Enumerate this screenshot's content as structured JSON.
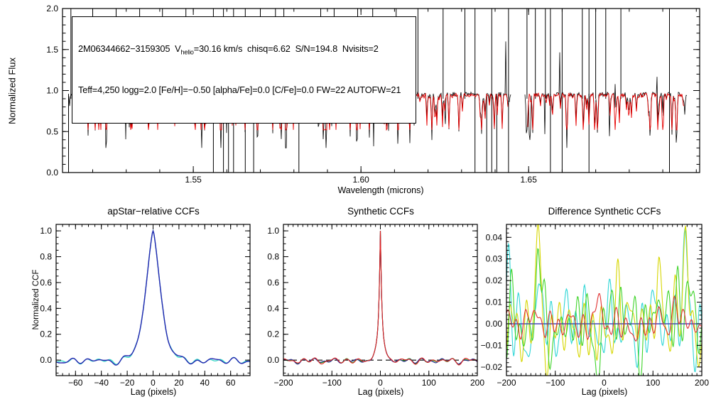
{
  "background": "#ffffff",
  "chart_data": [
    {
      "id": "spectrum",
      "type": "line",
      "xlabel": "Wavelength (microns)",
      "ylabel": "Normalized Flux",
      "xlim": [
        1.511,
        1.701
      ],
      "ylim": [
        0.0,
        2.0
      ],
      "xticks": [
        1.55,
        1.6,
        1.65
      ],
      "xtick_labels": [
        "1.55",
        "1.60",
        "1.65"
      ],
      "yticks": [
        0.0,
        0.5,
        1.0,
        1.5,
        2.0
      ],
      "ytick_labels": [
        "0.0",
        "0.5",
        "1.0",
        "1.5",
        "2.0"
      ],
      "x_minor": 0.01,
      "y_minor": 0.1,
      "grid": false,
      "segments_microns": [
        [
          1.5127,
          1.5815
        ],
        [
          1.5868,
          1.6447
        ],
        [
          1.6489,
          1.6972
        ]
      ],
      "continuum": 0.95,
      "annotation": {
        "line1_pre": "2M06344662−3159305  V",
        "line1_sub": "helio",
        "line1_post": "=30.16 km/s  chisq=6.62  S/N=194.8  Nvisits=2",
        "line2": "Teff=4,250 logg=2.0 [Fe/H]=−0.50 [alpha/Fe]=0.0 [C/Fe]=0.0 FW=22 AUTOFW=21"
      },
      "series": [
        {
          "name": "observed-spectrum",
          "color": "#000000"
        },
        {
          "name": "model-spectrum",
          "color": "#e60000"
        }
      ],
      "spikes_up_microns": [
        1.5135,
        1.52,
        1.527,
        1.534,
        1.5408,
        1.5478,
        1.556,
        1.559,
        1.562,
        1.5655,
        1.57,
        1.5745,
        1.577,
        1.588,
        1.592,
        1.599,
        1.6035,
        1.6105,
        1.617,
        1.6245,
        1.631,
        1.634,
        1.639,
        1.644,
        1.6495,
        1.652,
        1.655,
        1.6565,
        1.66,
        1.666,
        1.668,
        1.67,
        1.673,
        1.6775,
        1.692
      ],
      "spikes_down_microns": [
        1.5128,
        1.556,
        1.559,
        1.5605,
        1.562,
        1.5655,
        1.568,
        1.5815,
        1.634,
        1.6375,
        1.639,
        1.6405,
        1.644,
        1.6565,
        1.66,
        1.668,
        1.692
      ],
      "noise_seed": 7
    },
    {
      "id": "apstar_ccf",
      "type": "line",
      "title": "apStar−relative CCFs",
      "xlabel": "Lag (pixels)",
      "ylabel": "Normalized CCF",
      "xlim": [
        -75,
        75
      ],
      "ylim": [
        -0.12,
        1.05
      ],
      "xticks": [
        -60,
        -40,
        -20,
        0,
        20,
        40,
        60
      ],
      "xtick_labels": [
        "−60",
        "−40",
        "−20",
        "0",
        "20",
        "40",
        "60"
      ],
      "yticks": [
        0.0,
        0.2,
        0.4,
        0.6,
        0.8,
        1.0
      ],
      "ytick_labels": [
        "0.0",
        "0.2",
        "0.4",
        "0.6",
        "0.8",
        "1.0"
      ],
      "x_minor": 5,
      "y_minor": 0.05,
      "grid": false,
      "peak": {
        "center": 0,
        "height": 1.0,
        "width": 8.0,
        "power": 1.5
      },
      "osc": {
        "periods": [
          9.5,
          14,
          21,
          33
        ],
        "amps": [
          0.012,
          0.009,
          0.006,
          0.005
        ]
      },
      "series": [
        {
          "name": "ccf-cyan",
          "color": "#3cdcc8",
          "seed": 5
        },
        {
          "name": "ccf-navy",
          "color": "#2525b0",
          "seed": 5,
          "extra_seed": 9,
          "extra_amp": 0.004
        }
      ]
    },
    {
      "id": "synthetic_ccf",
      "type": "line",
      "title": "Synthetic CCFs",
      "xlabel": "Lag (pixels)",
      "xlim": [
        -200,
        200
      ],
      "ylim": [
        -0.12,
        1.05
      ],
      "xticks": [
        -200,
        -100,
        0,
        100,
        200
      ],
      "xtick_labels": [
        "−200",
        "−100",
        "0",
        "100",
        "200"
      ],
      "yticks": [
        0.0,
        0.2,
        0.4,
        0.6,
        0.8,
        1.0
      ],
      "ytick_labels": [
        "0.0",
        "0.2",
        "0.4",
        "0.6",
        "0.8",
        "1.0"
      ],
      "x_minor": 10,
      "y_minor": 0.05,
      "grid": false,
      "zero_line": {
        "style": "dashed",
        "color": "#000000"
      },
      "peak": {
        "height": 1.0,
        "core_width": 2.9,
        "core_power": 1.07,
        "core_amp": 0.9,
        "wing_amp": 0.14,
        "wing_width": 13
      },
      "osc": {
        "periods": [
          22,
          31,
          47,
          68
        ],
        "amps": [
          0.011,
          0.008,
          0.006,
          0.0045
        ]
      },
      "series": [
        {
          "name": "synth-ccf-green",
          "color": "#1fae1f",
          "seed": 21
        },
        {
          "name": "synth-ccf-navy",
          "color": "#24248c",
          "seed": 21,
          "extra_seed": 3,
          "extra_amp": 0.003
        },
        {
          "name": "synth-ccf-red",
          "color": "#e02222",
          "seed": 21,
          "extra_seed": 8,
          "extra_amp": 0.003
        }
      ]
    },
    {
      "id": "diff_ccf",
      "type": "line",
      "title": "Difference Synthetic CCFs",
      "xlabel": "Lag (pixels)",
      "xlim": [
        -200,
        200
      ],
      "ylim": [
        -0.024,
        0.046
      ],
      "xticks": [
        -200,
        -100,
        0,
        100,
        200
      ],
      "xtick_labels": [
        "−200",
        "−100",
        "0",
        "100",
        "200"
      ],
      "yticks": [
        -0.02,
        -0.01,
        0.0,
        0.01,
        0.02,
        0.03,
        0.04
      ],
      "ytick_labels": [
        "−0.02",
        "−0.01",
        "0.00",
        "0.01",
        "0.02",
        "0.03",
        "0.04"
      ],
      "x_minor": 10,
      "y_minor": 0.002,
      "grid": false,
      "zero_line": {
        "style": "solid",
        "color": "#2525b0"
      },
      "osc": {
        "periods": [
          17,
          23,
          31,
          44,
          60
        ]
      },
      "series": [
        {
          "name": "diff-cyan",
          "color": "#2fd6d6",
          "seed": 31,
          "amp": 0.0065,
          "bumps": [
            [
              -195,
              0.025,
              6
            ],
            [
              -160,
              -0.012,
              8
            ],
            [
              -135,
              0.02,
              5
            ],
            [
              -40,
              0.008,
              8
            ],
            [
              -10,
              -0.018,
              6
            ],
            [
              15,
              0.01,
              5
            ],
            [
              60,
              -0.012,
              8
            ],
            [
              100,
              0.008,
              6
            ],
            [
              165,
              0.038,
              7
            ],
            [
              185,
              -0.015,
              6
            ]
          ]
        },
        {
          "name": "diff-yellow",
          "color": "#d6d600",
          "seed": 47,
          "amp": 0.0065,
          "bumps": [
            [
              -200,
              -0.014,
              6
            ],
            [
              -135,
              0.04,
              6
            ],
            [
              -115,
              -0.012,
              7
            ],
            [
              -60,
              -0.01,
              8
            ],
            [
              -15,
              -0.019,
              6
            ],
            [
              30,
              0.014,
              6
            ],
            [
              55,
              0.008,
              6
            ],
            [
              110,
              0.021,
              6
            ],
            [
              145,
              0.015,
              6
            ],
            [
              168,
              0.037,
              6
            ],
            [
              195,
              -0.012,
              5
            ]
          ]
        },
        {
          "name": "diff-green",
          "color": "#3fd42a",
          "seed": 59,
          "amp": 0.0065,
          "bumps": [
            [
              -190,
              0.015,
              6
            ],
            [
              -170,
              -0.015,
              7
            ],
            [
              -135,
              0.041,
              6
            ],
            [
              -105,
              -0.012,
              8
            ],
            [
              -10,
              -0.02,
              8
            ],
            [
              20,
              0.015,
              5
            ],
            [
              35,
              0.012,
              5
            ],
            [
              75,
              -0.013,
              7
            ],
            [
              110,
              0.02,
              6
            ],
            [
              150,
              0.017,
              6
            ],
            [
              170,
              0.02,
              8
            ],
            [
              195,
              -0.01,
              5
            ]
          ]
        },
        {
          "name": "diff-navy",
          "color": "#2525b0",
          "seed": 3,
          "amp": 0.0,
          "bumps": []
        },
        {
          "name": "diff-red",
          "color": "#e03030",
          "seed": 71,
          "amp": 0.003,
          "bumps": [
            [
              -150,
              0.005,
              10
            ],
            [
              -10,
              0.01,
              8
            ],
            [
              60,
              -0.006,
              12
            ],
            [
              145,
              0.008,
              10
            ]
          ]
        }
      ]
    }
  ]
}
